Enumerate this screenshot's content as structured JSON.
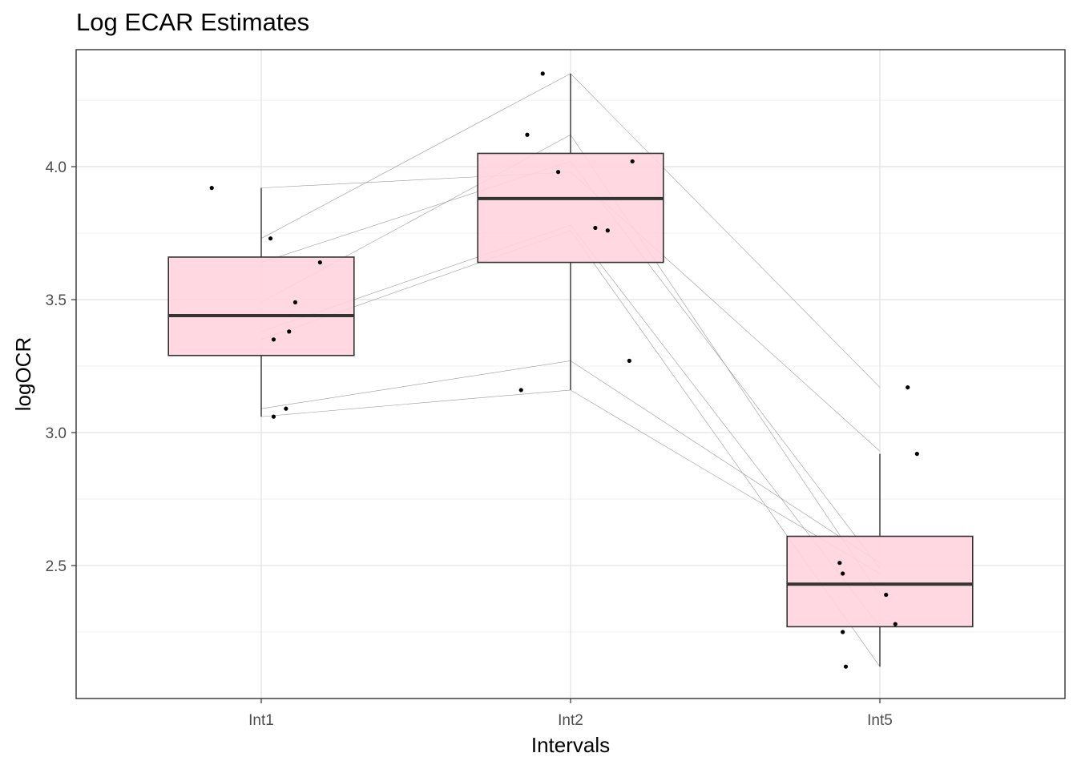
{
  "chart_data": {
    "type": "box",
    "title": "Log ECAR Estimates",
    "xlabel": "Intervals",
    "ylabel": "logOCR",
    "categories": [
      "Int1",
      "Int2",
      "Int5"
    ],
    "ylim": [
      2.0,
      4.44
    ],
    "yticks": [
      2.5,
      3.0,
      3.5,
      4.0
    ],
    "ytick_labels": [
      "2.5",
      "3.0",
      "3.5",
      "4.0"
    ],
    "grid": true,
    "box_fill": "#ffd4de",
    "box_stroke": "#333333",
    "boxes": [
      {
        "category": "Int1",
        "whisker_low": 3.06,
        "q1": 3.29,
        "median": 3.44,
        "q3": 3.66,
        "whisker_high": 3.92
      },
      {
        "category": "Int2",
        "whisker_low": 3.16,
        "q1": 3.64,
        "median": 3.88,
        "q3": 4.05,
        "whisker_high": 4.35
      },
      {
        "category": "Int5",
        "whisker_low": 2.12,
        "q1": 2.27,
        "median": 2.43,
        "q3": 2.61,
        "whisker_high": 2.92
      }
    ],
    "jitter_points": [
      {
        "category": "Int1",
        "offset": -0.16,
        "y": 3.92
      },
      {
        "category": "Int1",
        "offset": 0.03,
        "y": 3.73
      },
      {
        "category": "Int1",
        "offset": 0.19,
        "y": 3.64
      },
      {
        "category": "Int1",
        "offset": 0.11,
        "y": 3.49
      },
      {
        "category": "Int1",
        "offset": 0.09,
        "y": 3.38
      },
      {
        "category": "Int1",
        "offset": 0.04,
        "y": 3.35
      },
      {
        "category": "Int1",
        "offset": 0.08,
        "y": 3.09
      },
      {
        "category": "Int1",
        "offset": 0.04,
        "y": 3.06
      },
      {
        "category": "Int2",
        "offset": -0.09,
        "y": 4.35
      },
      {
        "category": "Int2",
        "offset": -0.14,
        "y": 4.12
      },
      {
        "category": "Int2",
        "offset": -0.04,
        "y": 3.98
      },
      {
        "category": "Int2",
        "offset": 0.2,
        "y": 4.02
      },
      {
        "category": "Int2",
        "offset": 0.08,
        "y": 3.77
      },
      {
        "category": "Int2",
        "offset": 0.12,
        "y": 3.76
      },
      {
        "category": "Int2",
        "offset": 0.19,
        "y": 3.27
      },
      {
        "category": "Int2",
        "offset": -0.16,
        "y": 3.16
      },
      {
        "category": "Int5",
        "offset": 0.09,
        "y": 3.17
      },
      {
        "category": "Int5",
        "offset": 0.12,
        "y": 2.92
      },
      {
        "category": "Int5",
        "offset": -0.13,
        "y": 2.51
      },
      {
        "category": "Int5",
        "offset": -0.12,
        "y": 2.47
      },
      {
        "category": "Int5",
        "offset": 0.02,
        "y": 2.39
      },
      {
        "category": "Int5",
        "offset": 0.05,
        "y": 2.28
      },
      {
        "category": "Int5",
        "offset": -0.12,
        "y": 2.25
      },
      {
        "category": "Int5",
        "offset": -0.11,
        "y": 2.12
      }
    ],
    "subject_lines": [
      [
        3.92,
        3.98,
        2.93
      ],
      [
        3.73,
        4.35,
        3.17
      ],
      [
        3.64,
        4.02,
        2.49
      ],
      [
        3.49,
        4.12,
        2.39
      ],
      [
        3.38,
        3.78,
        2.27
      ],
      [
        3.35,
        3.76,
        2.12
      ],
      [
        3.09,
        3.27,
        2.51
      ],
      [
        3.06,
        3.16,
        2.47
      ]
    ]
  }
}
